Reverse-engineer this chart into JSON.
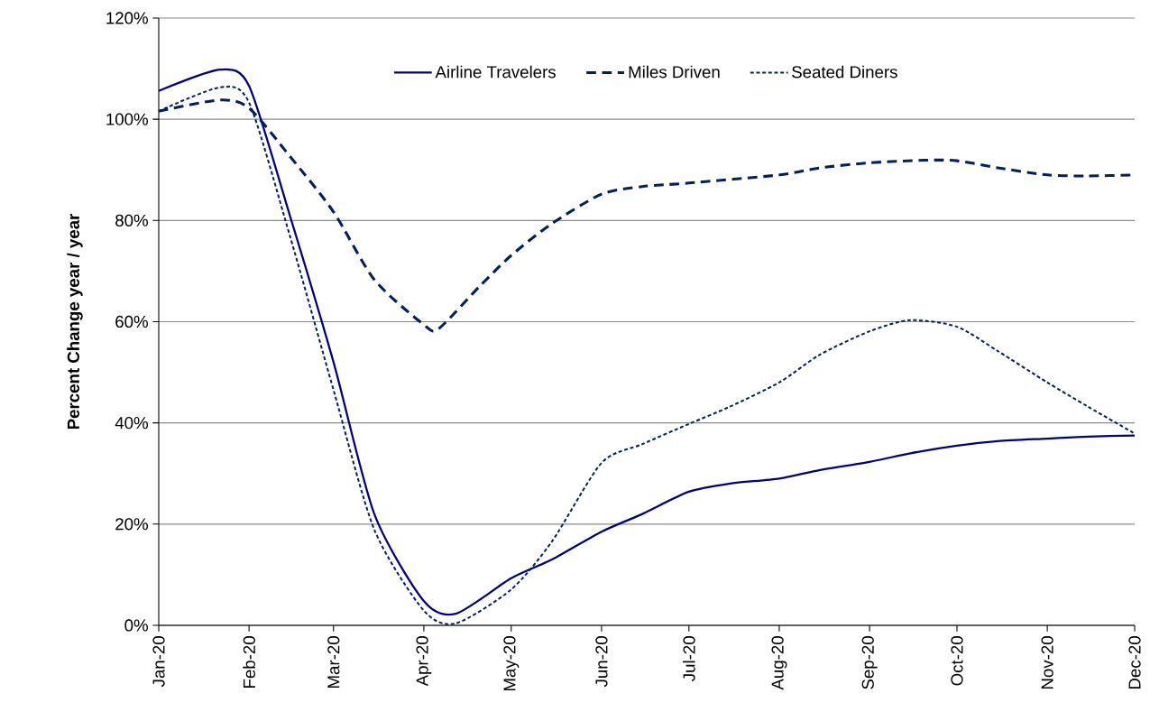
{
  "chart_data": {
    "type": "line",
    "ylabel": "Percent Change year / year",
    "xlim": [
      "2020-01-01",
      "2020-12-01"
    ],
    "xticks": [
      {
        "value": "2020-01-01",
        "label": "Jan-20"
      },
      {
        "value": "2020-02-01",
        "label": "Feb-20"
      },
      {
        "value": "2020-03-01",
        "label": "Mar-20"
      },
      {
        "value": "2020-04-01",
        "label": "Apr-20"
      },
      {
        "value": "2020-05-01",
        "label": "May-20"
      },
      {
        "value": "2020-06-01",
        "label": "Jun-20"
      },
      {
        "value": "2020-07-01",
        "label": "Jul-20"
      },
      {
        "value": "2020-08-01",
        "label": "Aug-20"
      },
      {
        "value": "2020-09-01",
        "label": "Sep-20"
      },
      {
        "value": "2020-10-01",
        "label": "Oct-20"
      },
      {
        "value": "2020-11-01",
        "label": "Nov-20"
      },
      {
        "value": "2020-12-01",
        "label": "Dec-20"
      }
    ],
    "ylim": [
      0,
      120
    ],
    "yticks": [
      {
        "value": 0,
        "label": "0%"
      },
      {
        "value": 20,
        "label": "20%"
      },
      {
        "value": 40,
        "label": "40%"
      },
      {
        "value": 60,
        "label": "60%"
      },
      {
        "value": 80,
        "label": "80%"
      },
      {
        "value": 100,
        "label": "100%"
      },
      {
        "value": 120,
        "label": "120%"
      }
    ],
    "grid": "y",
    "legend": "top",
    "marker": "none",
    "series": [
      {
        "name": "Airline Travelers",
        "color": "#000080",
        "line_style": "solid",
        "x": [
          "2020-01-01",
          "2020-01-22",
          "2020-02-01",
          "2020-02-15",
          "2020-03-01",
          "2020-03-15",
          "2020-04-01",
          "2020-04-12",
          "2020-05-01",
          "2020-05-15",
          "2020-06-01",
          "2020-06-15",
          "2020-07-01",
          "2020-07-15",
          "2020-08-01",
          "2020-08-15",
          "2020-09-01",
          "2020-09-15",
          "2020-10-01",
          "2020-10-15",
          "2020-11-01",
          "2020-11-15",
          "2020-12-01"
        ],
        "values": [
          105.6,
          109.8,
          106.6,
          81,
          52,
          22,
          4.8,
          2.3,
          9.3,
          13,
          18.5,
          22,
          26.4,
          28,
          29,
          30.7,
          32.3,
          34,
          35.5,
          36.4,
          36.9,
          37.3,
          37.5
        ]
      },
      {
        "name": "Miles Driven",
        "color": "#002060",
        "line_style": "dashed",
        "x": [
          "2020-01-01",
          "2020-01-22",
          "2020-02-01",
          "2020-02-15",
          "2020-03-01",
          "2020-03-15",
          "2020-04-01",
          "2020-04-06",
          "2020-04-20",
          "2020-05-01",
          "2020-05-15",
          "2020-06-01",
          "2020-06-15",
          "2020-07-01",
          "2020-08-01",
          "2020-08-15",
          "2020-09-01",
          "2020-09-20",
          "2020-10-01",
          "2020-10-15",
          "2020-11-01",
          "2020-11-15",
          "2020-12-01"
        ],
        "values": [
          101.6,
          103.8,
          102.2,
          92.7,
          81.7,
          68.3,
          59.4,
          58.6,
          66.9,
          73.1,
          79.4,
          85.2,
          86.7,
          87.4,
          89,
          90.4,
          91.4,
          91.9,
          91.8,
          90.4,
          89,
          88.8,
          89
        ]
      },
      {
        "name": "Seated Diners",
        "color": "#002060",
        "line_style": "dotted",
        "x": [
          "2020-01-01",
          "2020-01-22",
          "2020-02-01",
          "2020-02-15",
          "2020-03-01",
          "2020-03-15",
          "2020-04-01",
          "2020-04-12",
          "2020-05-01",
          "2020-05-15",
          "2020-06-01",
          "2020-06-15",
          "2020-07-01",
          "2020-07-15",
          "2020-08-01",
          "2020-08-15",
          "2020-09-01",
          "2020-09-15",
          "2020-10-01",
          "2020-10-15",
          "2020-11-01",
          "2020-11-15",
          "2020-12-01"
        ],
        "values": [
          101.6,
          106.3,
          103.3,
          77,
          46.5,
          18.9,
          2.9,
          0.4,
          7.1,
          16.6,
          32.1,
          35.8,
          39.8,
          43.2,
          48,
          53.5,
          58.1,
          60.3,
          59,
          54.2,
          48,
          43.2,
          37.9
        ]
      }
    ]
  }
}
